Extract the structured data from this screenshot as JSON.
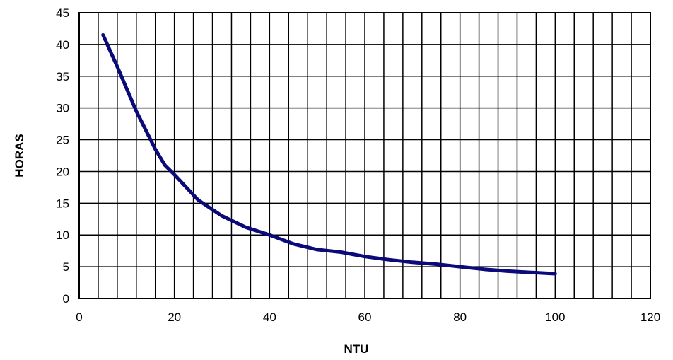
{
  "chart_data": {
    "type": "line",
    "title": "",
    "xlabel": "NTU",
    "ylabel": "HORAS",
    "xlim": [
      0,
      120
    ],
    "ylim": [
      0,
      45
    ],
    "x_ticks": [
      0,
      20,
      40,
      60,
      80,
      100,
      120
    ],
    "y_ticks": [
      0,
      5,
      10,
      15,
      20,
      25,
      30,
      35,
      40,
      45
    ],
    "grid": {
      "vertical_step": 4,
      "horizontal_step": 5
    },
    "colors": {
      "line": "#0a0a7a",
      "grid": "#000000"
    },
    "series": [
      {
        "x": [
          5,
          8,
          10,
          12,
          14,
          16,
          18,
          20,
          25,
          30,
          35,
          40,
          45,
          50,
          55,
          60,
          65,
          70,
          75,
          80,
          85,
          90,
          95,
          100
        ],
        "y": [
          41.5,
          36.5,
          33,
          29.5,
          26.5,
          23.5,
          21,
          19.5,
          15.5,
          13,
          11.2,
          10,
          8.6,
          7.7,
          7.3,
          6.6,
          6.1,
          5.7,
          5.4,
          5,
          4.6,
          4.3,
          4.1,
          3.9
        ]
      }
    ]
  }
}
